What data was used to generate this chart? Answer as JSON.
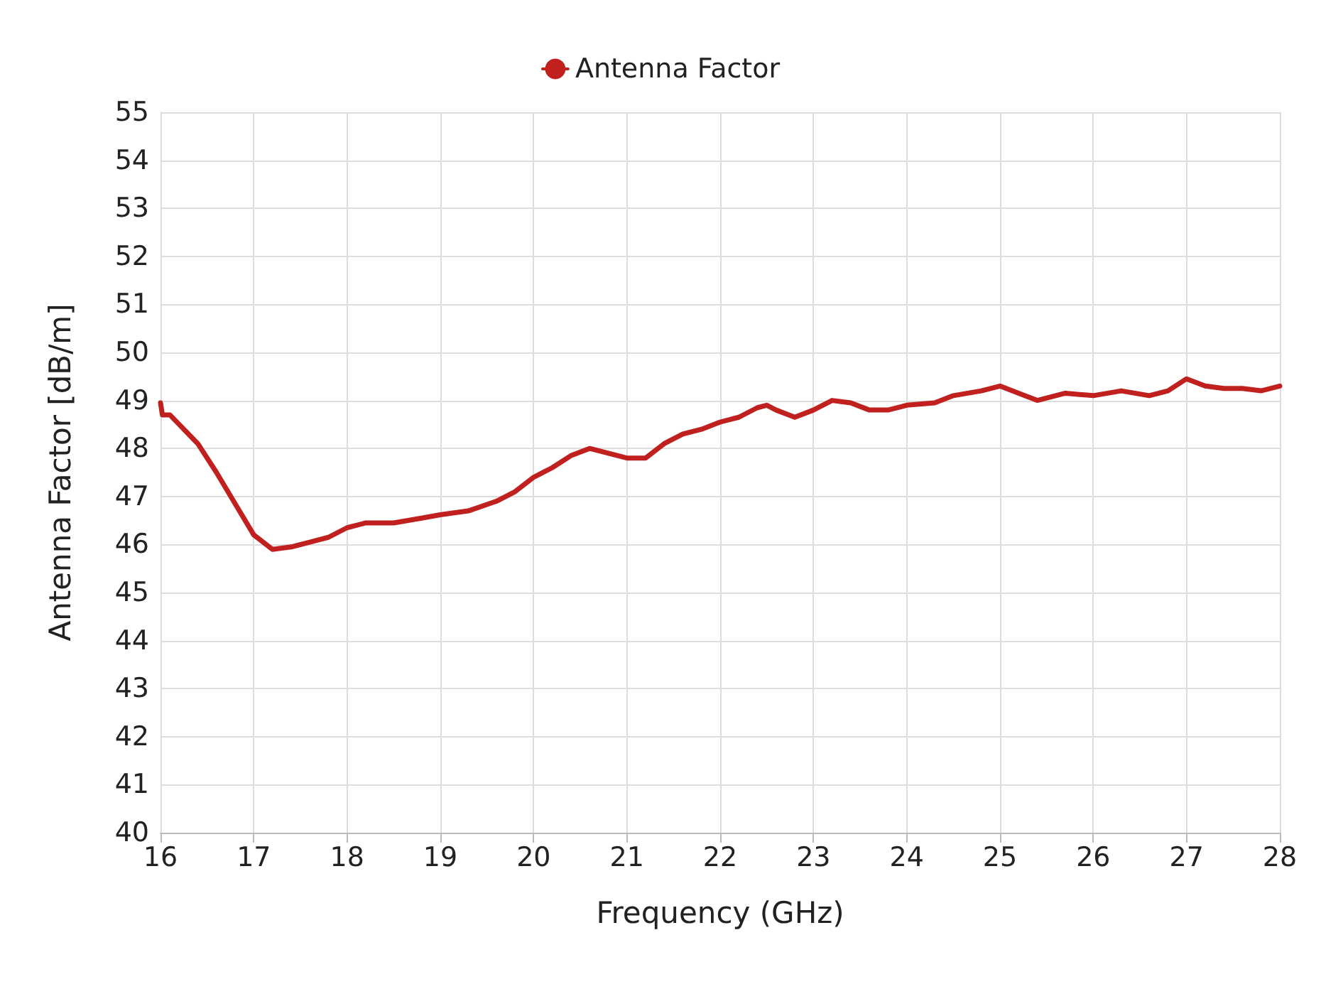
{
  "chart_data": {
    "type": "line",
    "xlabel": "Frequency (GHz)",
    "ylabel": "Antenna Factor [dB/m]",
    "x": [
      16.0,
      16.02,
      16.1,
      16.2,
      16.4,
      16.6,
      16.8,
      17.0,
      17.2,
      17.4,
      17.6,
      17.8,
      18.0,
      18.2,
      18.5,
      18.8,
      19.0,
      19.3,
      19.6,
      19.8,
      20.0,
      20.2,
      20.4,
      20.6,
      20.8,
      21.0,
      21.2,
      21.4,
      21.6,
      21.8,
      22.0,
      22.2,
      22.4,
      22.5,
      22.6,
      22.8,
      23.0,
      23.2,
      23.4,
      23.6,
      23.8,
      24.0,
      24.3,
      24.5,
      24.8,
      25.0,
      25.2,
      25.4,
      25.7,
      26.0,
      26.3,
      26.6,
      26.8,
      27.0,
      27.2,
      27.4,
      27.6,
      27.8,
      28.0
    ],
    "series": [
      {
        "name": "Antenna Factor",
        "color": "#c0201e",
        "values": [
          48.95,
          48.7,
          48.7,
          48.5,
          48.1,
          47.5,
          46.85,
          46.2,
          45.9,
          45.95,
          46.05,
          46.15,
          46.35,
          46.45,
          46.45,
          46.55,
          46.62,
          46.7,
          46.9,
          47.1,
          47.4,
          47.6,
          47.85,
          48.0,
          47.9,
          47.8,
          47.8,
          48.1,
          48.3,
          48.4,
          48.55,
          48.65,
          48.85,
          48.9,
          48.8,
          48.65,
          48.8,
          49.0,
          48.95,
          48.8,
          48.8,
          48.9,
          48.95,
          49.1,
          49.2,
          49.3,
          49.15,
          49.0,
          49.15,
          49.1,
          49.2,
          49.1,
          49.2,
          49.45,
          49.3,
          49.25,
          49.25,
          49.2,
          49.3
        ]
      }
    ],
    "xlim": [
      16,
      28
    ],
    "xticks": [
      16,
      17,
      18,
      19,
      20,
      21,
      22,
      23,
      24,
      25,
      26,
      27,
      28
    ],
    "ylim": [
      40,
      55
    ],
    "yticks": [
      40,
      41,
      42,
      43,
      44,
      45,
      46,
      47,
      48,
      49,
      50,
      51,
      52,
      53,
      54,
      55
    ],
    "grid": true,
    "legend": "top",
    "marker": "none",
    "line_style": "solid"
  }
}
